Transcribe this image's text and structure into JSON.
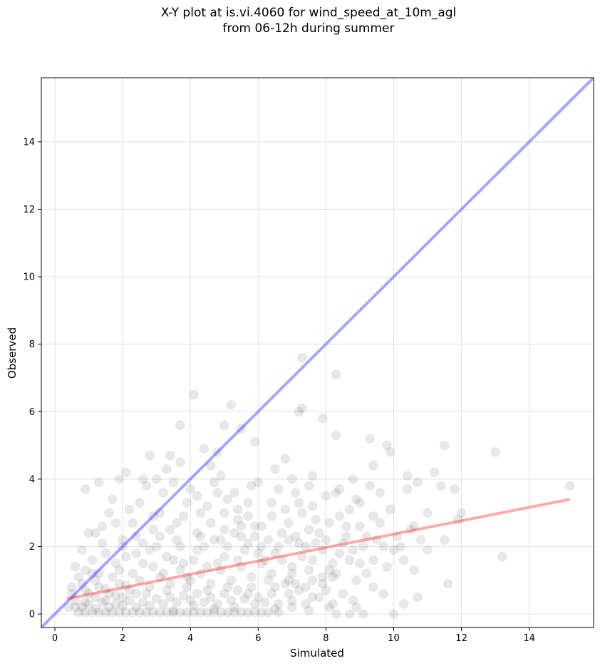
{
  "title": {
    "line1": "X-Y plot at is.vi.4060 for wind_speed_at_10m_agl",
    "line2": "from 06-12h during summer"
  },
  "chart_data": {
    "type": "scatter",
    "xlabel": "Simulated",
    "ylabel": "Observed",
    "xlim": [
      -0.4,
      15.9
    ],
    "ylim": [
      -0.4,
      15.9
    ],
    "xticks": [
      0,
      2,
      4,
      6,
      8,
      10,
      12,
      14
    ],
    "yticks": [
      0,
      2,
      4,
      6,
      8,
      10,
      12,
      14
    ],
    "grid": true,
    "point_color": "#000000",
    "point_opacity": 0.09,
    "identity_line": {
      "color": "#0000ff",
      "from": [
        -0.4,
        -0.4
      ],
      "to": [
        15.9,
        15.9
      ]
    },
    "fit_line": {
      "color": "#ff0000",
      "from": [
        0.35,
        0.45
      ],
      "to": [
        15.2,
        3.4
      ]
    },
    "points": [
      [
        4.1,
        6.5
      ],
      [
        5.2,
        6.2
      ],
      [
        7.3,
        7.6
      ],
      [
        8.3,
        7.1
      ],
      [
        7.2,
        6.0
      ],
      [
        7.3,
        6.1
      ],
      [
        7.9,
        5.8
      ],
      [
        3.7,
        5.6
      ],
      [
        5.0,
        5.6
      ],
      [
        5.5,
        5.5
      ],
      [
        5.9,
        5.1
      ],
      [
        8.3,
        5.3
      ],
      [
        9.3,
        5.2
      ],
      [
        9.8,
        5.0
      ],
      [
        11.5,
        5.0
      ],
      [
        13.0,
        4.8
      ],
      [
        15.2,
        3.8
      ],
      [
        13.2,
        1.7
      ],
      [
        11.6,
        0.9
      ],
      [
        9.9,
        4.8
      ],
      [
        10.4,
        4.1
      ],
      [
        10.7,
        3.9
      ],
      [
        11.2,
        4.2
      ],
      [
        11.4,
        3.8
      ],
      [
        11.8,
        3.7
      ],
      [
        12.0,
        3.0
      ],
      [
        11.0,
        3.0
      ],
      [
        10.6,
        2.6
      ],
      [
        10.5,
        2.5
      ],
      [
        10.8,
        2.2
      ],
      [
        11.0,
        1.9
      ],
      [
        11.5,
        2.2
      ],
      [
        11.9,
        2.8
      ],
      [
        10.2,
        2.0
      ],
      [
        10.6,
        1.3
      ],
      [
        10.7,
        0.5
      ],
      [
        10.3,
        0.3
      ],
      [
        10.0,
        0.0
      ],
      [
        9.1,
        0.0
      ],
      [
        8.3,
        0.0
      ],
      [
        8.7,
        0.0
      ],
      [
        8.1,
        1.3
      ],
      [
        7.5,
        1.3
      ],
      [
        2.8,
        4.7
      ],
      [
        3.4,
        4.7
      ],
      [
        4.4,
        4.9
      ],
      [
        4.8,
        4.8
      ],
      [
        6.8,
        4.6
      ],
      [
        4.6,
        4.4
      ],
      [
        3.3,
        4.3
      ],
      [
        3.7,
        4.5
      ],
      [
        2.1,
        4.2
      ],
      [
        2.6,
        4.0
      ],
      [
        1.9,
        4.0
      ],
      [
        0.9,
        3.7
      ],
      [
        1.3,
        3.9
      ],
      [
        2.7,
        3.8
      ],
      [
        6.5,
        4.3
      ],
      [
        7.6,
        4.1
      ],
      [
        8.8,
        4.0
      ],
      [
        9.4,
        4.4
      ],
      [
        8.4,
        3.7
      ],
      [
        8.7,
        3.1
      ],
      [
        9.0,
        3.3
      ],
      [
        9.4,
        2.9
      ],
      [
        9.6,
        3.6
      ],
      [
        9.9,
        3.1
      ],
      [
        8.4,
        2.9
      ],
      [
        9.2,
        2.3
      ],
      [
        9.7,
        2.0
      ],
      [
        9.0,
        1.5
      ],
      [
        8.9,
        1.0
      ],
      [
        9.4,
        0.8
      ],
      [
        9.7,
        0.6
      ],
      [
        8.2,
        0.3
      ],
      [
        7.6,
        0.5
      ],
      [
        7.9,
        0.9
      ],
      [
        6.9,
        0.6
      ],
      [
        7.0,
        1.2
      ],
      [
        6.3,
        1.0
      ],
      [
        6.5,
        1.8
      ],
      [
        7.2,
        2.1
      ],
      [
        7.5,
        2.5
      ],
      [
        6.1,
        2.6
      ],
      [
        5.7,
        2.9
      ],
      [
        5.4,
        3.1
      ],
      [
        5.1,
        3.4
      ],
      [
        4.8,
        3.6
      ],
      [
        4.3,
        3.0
      ],
      [
        3.9,
        3.3
      ],
      [
        3.6,
        2.7
      ],
      [
        3.1,
        3.0
      ],
      [
        2.9,
        2.5
      ],
      [
        2.4,
        2.3
      ],
      [
        2.2,
        3.1
      ],
      [
        1.8,
        2.7
      ],
      [
        1.6,
        3.0
      ],
      [
        1.4,
        2.1
      ],
      [
        1.1,
        1.6
      ],
      [
        0.9,
        1.3
      ],
      [
        0.7,
        1.1
      ],
      [
        0.5,
        0.8
      ],
      [
        0.6,
        1.4
      ],
      [
        0.8,
        1.9
      ],
      [
        1.2,
        2.4
      ],
      [
        1.5,
        1.8
      ],
      [
        1.9,
        1.3
      ],
      [
        2.1,
        1.7
      ],
      [
        2.6,
        1.5
      ],
      [
        2.8,
        1.9
      ],
      [
        3.2,
        1.2
      ],
      [
        3.5,
        1.6
      ],
      [
        3.9,
        1.1
      ],
      [
        4.2,
        1.9
      ],
      [
        4.5,
        1.4
      ],
      [
        4.7,
        2.2
      ],
      [
        5.0,
        1.7
      ],
      [
        5.3,
        2.4
      ],
      [
        5.6,
        1.9
      ],
      [
        5.9,
        2.3
      ],
      [
        6.2,
        1.6
      ],
      [
        6.6,
        2.0
      ],
      [
        6.9,
        2.7
      ],
      [
        7.3,
        3.0
      ],
      [
        7.7,
        2.8
      ],
      [
        8.0,
        2.2
      ],
      [
        8.4,
        1.8
      ],
      [
        8.6,
        2.6
      ],
      [
        7.1,
        3.6
      ],
      [
        6.4,
        3.3
      ],
      [
        5.8,
        3.8
      ],
      [
        4.9,
        4.1
      ],
      [
        4.0,
        3.7
      ],
      [
        3.2,
        3.6
      ],
      [
        2.5,
        3.3
      ],
      [
        2.0,
        2.2
      ],
      [
        1.3,
        1.2
      ],
      [
        0.9,
        0.7
      ],
      [
        0.6,
        0.4
      ],
      [
        0.4,
        0.2
      ],
      [
        0.7,
        0.05
      ],
      [
        0.9,
        0.05
      ],
      [
        1.1,
        0.05
      ],
      [
        1.3,
        0.05
      ],
      [
        1.5,
        0.05
      ],
      [
        1.7,
        0.05
      ],
      [
        1.9,
        0.05
      ],
      [
        2.1,
        0.05
      ],
      [
        2.3,
        0.05
      ],
      [
        2.5,
        0.05
      ],
      [
        2.7,
        0.05
      ],
      [
        2.9,
        0.05
      ],
      [
        3.1,
        0.05
      ],
      [
        3.3,
        0.05
      ],
      [
        3.5,
        0.05
      ],
      [
        3.7,
        0.05
      ],
      [
        3.9,
        0.05
      ],
      [
        4.1,
        0.05
      ],
      [
        4.3,
        0.05
      ],
      [
        4.5,
        0.05
      ],
      [
        4.7,
        0.05
      ],
      [
        4.9,
        0.05
      ],
      [
        5.1,
        0.05
      ],
      [
        5.3,
        0.05
      ],
      [
        5.5,
        0.05
      ],
      [
        5.7,
        0.05
      ],
      [
        5.9,
        0.05
      ],
      [
        6.1,
        0.05
      ],
      [
        6.3,
        0.05
      ],
      [
        6.6,
        0.05
      ],
      [
        0.8,
        0.2
      ],
      [
        1.0,
        0.3
      ],
      [
        1.2,
        0.15
      ],
      [
        1.4,
        0.35
      ],
      [
        1.6,
        0.2
      ],
      [
        1.8,
        0.3
      ],
      [
        2.0,
        0.25
      ],
      [
        2.2,
        0.4
      ],
      [
        2.4,
        0.2
      ],
      [
        2.6,
        0.35
      ],
      [
        2.8,
        0.25
      ],
      [
        3.0,
        0.45
      ],
      [
        3.2,
        0.3
      ],
      [
        3.4,
        0.5
      ],
      [
        3.6,
        0.35
      ],
      [
        3.8,
        0.55
      ],
      [
        4.0,
        0.4
      ],
      [
        4.2,
        0.6
      ],
      [
        4.4,
        0.35
      ],
      [
        4.6,
        0.5
      ],
      [
        4.8,
        0.3
      ],
      [
        5.0,
        0.6
      ],
      [
        5.2,
        0.4
      ],
      [
        5.4,
        0.7
      ],
      [
        5.6,
        0.45
      ],
      [
        5.8,
        0.8
      ],
      [
        6.0,
        0.5
      ],
      [
        6.2,
        0.35
      ],
      [
        6.4,
        0.6
      ],
      [
        6.6,
        0.3
      ],
      [
        6.8,
        0.9
      ],
      [
        7.0,
        0.4
      ],
      [
        7.2,
        0.7
      ],
      [
        7.4,
        0.3
      ],
      [
        7.6,
        1.0
      ],
      [
        7.8,
        0.5
      ],
      [
        8.0,
        0.7
      ],
      [
        8.2,
        1.1
      ],
      [
        8.5,
        0.6
      ],
      [
        8.8,
        0.4
      ],
      [
        1.0,
        0.6
      ],
      [
        1.3,
        0.8
      ],
      [
        1.6,
        0.6
      ],
      [
        1.9,
        0.9
      ],
      [
        2.2,
        0.7
      ],
      [
        2.5,
        1.0
      ],
      [
        2.8,
        0.8
      ],
      [
        3.1,
        1.1
      ],
      [
        3.4,
        0.9
      ],
      [
        3.7,
        1.3
      ],
      [
        4.0,
        1.0
      ],
      [
        4.3,
        1.2
      ],
      [
        4.6,
        0.9
      ],
      [
        4.9,
        1.3
      ],
      [
        5.2,
        1.0
      ],
      [
        5.5,
        1.4
      ],
      [
        5.8,
        1.1
      ],
      [
        6.1,
        1.5
      ],
      [
        6.4,
        1.2
      ],
      [
        6.7,
        1.6
      ],
      [
        7.0,
        1.4
      ],
      [
        7.3,
        1.7
      ],
      [
        7.6,
        1.6
      ],
      [
        7.9,
        1.9
      ],
      [
        8.2,
        1.5
      ],
      [
        8.5,
        2.1
      ],
      [
        8.8,
        1.9
      ],
      [
        9.1,
        2.0
      ],
      [
        9.4,
        1.6
      ],
      [
        9.8,
        1.4
      ],
      [
        1.2,
        1.0
      ],
      [
        1.7,
        1.1
      ],
      [
        2.3,
        1.2
      ],
      [
        2.9,
        1.4
      ],
      [
        3.3,
        1.7
      ],
      [
        3.8,
        1.5
      ],
      [
        4.1,
        1.6
      ],
      [
        4.4,
        2.0
      ],
      [
        4.8,
        1.5
      ],
      [
        5.1,
        2.0
      ],
      [
        5.4,
        1.6
      ],
      [
        5.7,
        2.1
      ],
      [
        6.0,
        1.8
      ],
      [
        6.3,
        2.2
      ],
      [
        6.7,
        2.4
      ],
      [
        7.1,
        2.3
      ],
      [
        7.4,
        2.0
      ],
      [
        7.8,
        2.4
      ],
      [
        8.1,
        2.7
      ],
      [
        8.6,
        2.3
      ],
      [
        1.5,
        0.4
      ],
      [
        2.0,
        0.5
      ],
      [
        2.7,
        0.6
      ],
      [
        3.3,
        0.7
      ],
      [
        3.9,
        0.8
      ],
      [
        4.5,
        0.7
      ],
      [
        5.1,
        0.8
      ],
      [
        5.7,
        0.6
      ],
      [
        6.5,
        0.8
      ],
      [
        7.1,
        0.9
      ],
      [
        1.8,
        1.5
      ],
      [
        2.4,
        1.8
      ],
      [
        3.0,
        2.0
      ],
      [
        3.6,
        2.2
      ],
      [
        4.2,
        2.4
      ],
      [
        4.6,
        2.7
      ],
      [
        5.0,
        2.5
      ],
      [
        5.4,
        2.8
      ],
      [
        5.9,
        2.6
      ],
      [
        6.4,
        2.9
      ],
      [
        6.8,
        3.1
      ],
      [
        7.2,
        3.3
      ],
      [
        7.6,
        3.2
      ],
      [
        8.0,
        3.5
      ],
      [
        8.3,
        3.6
      ],
      [
        8.9,
        3.4
      ],
      [
        9.3,
        3.8
      ],
      [
        9.6,
        2.7
      ],
      [
        10.1,
        2.3
      ],
      [
        10.4,
        3.7
      ],
      [
        3.0,
        4.0
      ],
      [
        3.5,
        3.9
      ],
      [
        4.2,
        3.5
      ],
      [
        4.7,
        3.9
      ],
      [
        5.3,
        3.6
      ],
      [
        5.7,
        3.3
      ],
      [
        6.0,
        3.9
      ],
      [
        6.6,
        3.7
      ],
      [
        7.0,
        4.0
      ],
      [
        7.5,
        3.8
      ],
      [
        1.0,
        2.4
      ],
      [
        1.4,
        2.6
      ],
      [
        1.7,
        3.4
      ],
      [
        2.3,
        2.7
      ],
      [
        2.9,
        2.9
      ],
      [
        3.4,
        2.5
      ],
      [
        3.8,
        2.9
      ],
      [
        4.5,
        3.2
      ],
      [
        5.0,
        3.0
      ],
      [
        5.5,
        2.6
      ],
      [
        0.5,
        0.6
      ],
      [
        0.8,
        0.9
      ],
      [
        1.1,
        1.2
      ],
      [
        0.6,
        0.2
      ],
      [
        0.9,
        0.35
      ],
      [
        1.2,
        0.5
      ],
      [
        1.5,
        0.75
      ],
      [
        1.8,
        0.55
      ],
      [
        2.1,
        0.85
      ],
      [
        2.4,
        0.6
      ],
      [
        3.5,
        0.1
      ],
      [
        4.1,
        0.25
      ],
      [
        4.7,
        0.15
      ],
      [
        5.3,
        0.2
      ],
      [
        5.9,
        0.3
      ],
      [
        6.5,
        0.15
      ],
      [
        7.0,
        0.2
      ],
      [
        7.5,
        0.1
      ],
      [
        8.1,
        0.2
      ],
      [
        8.9,
        0.2
      ],
      [
        2.0,
        2.0
      ],
      [
        2.6,
        2.1
      ],
      [
        3.1,
        2.3
      ],
      [
        3.7,
        2.0
      ],
      [
        4.3,
        2.3
      ],
      [
        4.9,
        2.2
      ],
      [
        5.5,
        2.3
      ],
      [
        6.1,
        2.0
      ],
      [
        6.9,
        2.2
      ],
      [
        7.7,
        2.1
      ],
      [
        9.0,
        2.6
      ],
      [
        9.5,
        2.2
      ],
      [
        10.0,
        1.9
      ],
      [
        10.3,
        1.6
      ],
      [
        9.2,
        1.2
      ],
      [
        8.7,
        1.6
      ],
      [
        8.3,
        1.2
      ],
      [
        7.9,
        1.1
      ],
      [
        7.4,
        0.8
      ],
      [
        6.9,
        1.0
      ]
    ]
  }
}
